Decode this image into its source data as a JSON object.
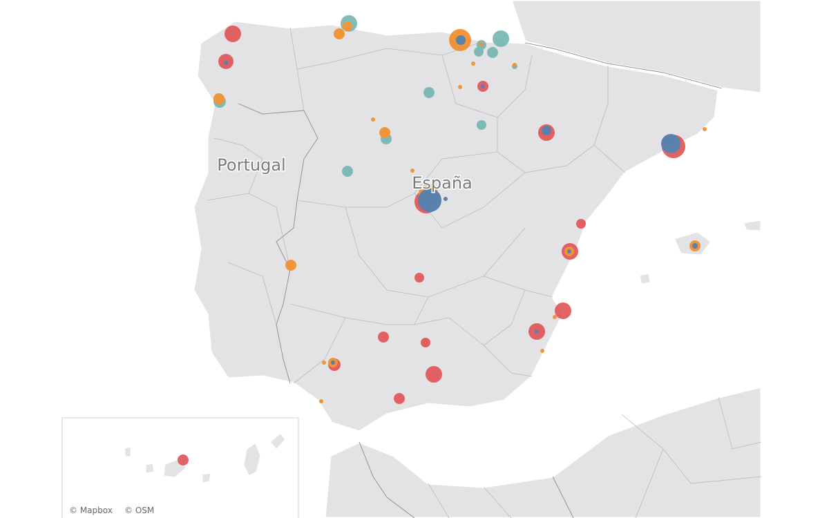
{
  "labels": {
    "portugal": "Portugal",
    "spain": "España"
  },
  "attribution": {
    "mapbox": "© Mapbox",
    "osm": "© OSM"
  }
}
